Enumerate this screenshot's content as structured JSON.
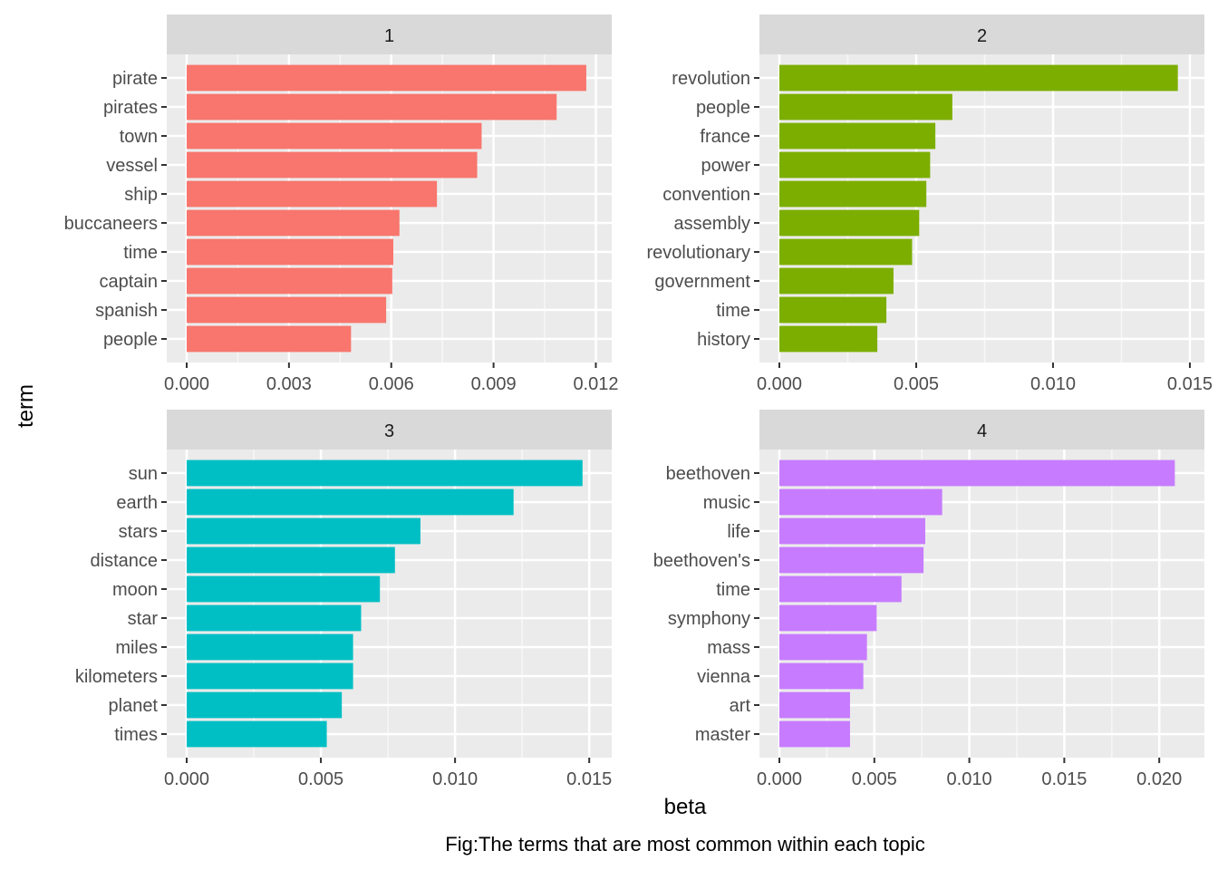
{
  "chart_data": {
    "type": "bar",
    "orientation": "horizontal",
    "layout": "facet 2x2",
    "xlabel": "beta",
    "ylabel": "term",
    "caption": "Fig:The terms that are most common within each topic",
    "grid": true,
    "legend": "none",
    "panels": [
      {
        "strip": "1",
        "color": "#F8766D",
        "xlim": [
          0,
          0.0122
        ],
        "xticks": [
          0,
          0.003,
          0.006,
          0.009,
          0.012
        ],
        "xtick_labels": [
          "0.000",
          "0.003",
          "0.006",
          "0.009",
          "0.012"
        ],
        "categories": [
          "pirate",
          "pirates",
          "town",
          "vessel",
          "ship",
          "buccaneers",
          "time",
          "captain",
          "spanish",
          "people"
        ],
        "values": [
          0.01172,
          0.01085,
          0.00865,
          0.00852,
          0.00734,
          0.00624,
          0.00606,
          0.00603,
          0.00585,
          0.00482
        ]
      },
      {
        "strip": "2",
        "color": "#7CAE00",
        "xlim": [
          0,
          0.0152
        ],
        "xticks": [
          0,
          0.005,
          0.01,
          0.015
        ],
        "xtick_labels": [
          "0.000",
          "0.005",
          "0.010",
          "0.015"
        ],
        "categories": [
          "revolution",
          "people",
          "france",
          "power",
          "convention",
          "assembly",
          "revolutionary",
          "government",
          "time",
          "history"
        ],
        "values": [
          0.01456,
          0.00632,
          0.0057,
          0.00551,
          0.00537,
          0.00511,
          0.00485,
          0.00417,
          0.00391,
          0.00358
        ]
      },
      {
        "strip": "3",
        "color": "#00BFC4",
        "xlim": [
          0,
          0.0155
        ],
        "xticks": [
          0,
          0.005,
          0.01,
          0.015
        ],
        "xtick_labels": [
          "0.000",
          "0.005",
          "0.010",
          "0.015"
        ],
        "categories": [
          "sun",
          "earth",
          "stars",
          "distance",
          "moon",
          "star",
          "miles",
          "kilometers",
          "planet",
          "times"
        ],
        "values": [
          0.01475,
          0.01218,
          0.00871,
          0.00776,
          0.0072,
          0.0065,
          0.0062,
          0.0062,
          0.00578,
          0.00522
        ]
      },
      {
        "strip": "4",
        "color": "#C77CFF",
        "xlim": [
          0,
          0.0219
        ],
        "xticks": [
          0,
          0.005,
          0.01,
          0.015,
          0.02
        ],
        "xtick_labels": [
          "0.000",
          "0.005",
          "0.010",
          "0.015",
          "0.020"
        ],
        "categories": [
          "beethoven",
          "music",
          "life",
          "beethoven's",
          "time",
          "symphony",
          "mass",
          "vienna",
          "art",
          "master"
        ],
        "values": [
          0.02082,
          0.00857,
          0.00768,
          0.00759,
          0.00643,
          0.00512,
          0.00461,
          0.00442,
          0.00372,
          0.00372
        ]
      }
    ]
  }
}
